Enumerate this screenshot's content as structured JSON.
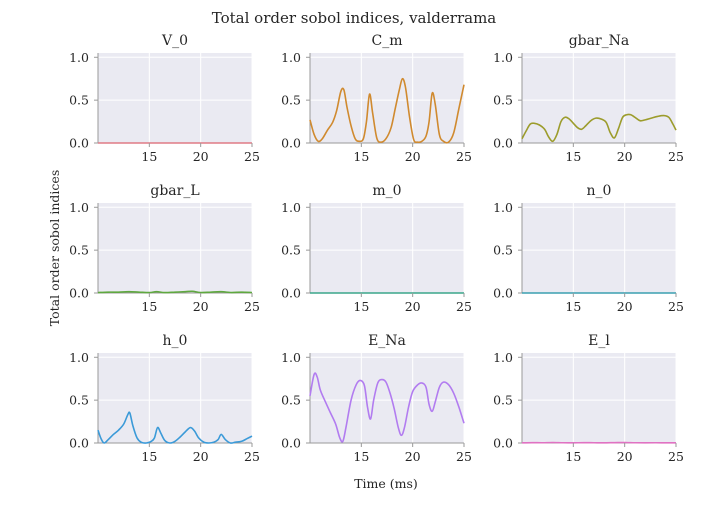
{
  "figure": {
    "title": "Total order sobol indices, valderrama",
    "xlabel": "Time (ms)",
    "ylabel": "Total order sobol indices"
  },
  "chart_data": {
    "type": "line",
    "title": "Total order sobol indices, valderrama",
    "xlabel": "Time (ms)",
    "ylabel": "Total order sobol indices",
    "xlim": [
      10,
      25
    ],
    "ylim": [
      0,
      1.05
    ],
    "xticks": [
      15,
      20,
      25
    ],
    "yticks": [
      "0.0",
      "0.5",
      "1.0"
    ],
    "grid": true,
    "background": "#eaeaf2",
    "panels": [
      {
        "title": "V_0",
        "color": "#e07b85",
        "x": [
          10,
          12,
          14,
          16,
          18,
          20,
          22,
          24,
          25
        ],
        "y": [
          0.0,
          0.0,
          0.0,
          0.0,
          0.0,
          0.0,
          0.0,
          0.0,
          0.0
        ]
      },
      {
        "title": "C_m",
        "color": "#d08a2f",
        "x": [
          10,
          10.4,
          10.8,
          11.2,
          11.7,
          12.2,
          12.6,
          13.0,
          13.3,
          13.6,
          14.0,
          14.4,
          14.8,
          15.2,
          15.5,
          15.8,
          16.1,
          16.5,
          16.9,
          17.4,
          17.9,
          18.3,
          18.7,
          19.0,
          19.3,
          19.7,
          20.1,
          20.5,
          20.9,
          21.3,
          21.6,
          21.9,
          22.2,
          22.6,
          23.0,
          23.5,
          24.0,
          24.5,
          25.0
        ],
        "y": [
          0.27,
          0.1,
          0.02,
          0.05,
          0.15,
          0.24,
          0.38,
          0.6,
          0.62,
          0.42,
          0.2,
          0.05,
          0.02,
          0.05,
          0.25,
          0.57,
          0.35,
          0.06,
          0.01,
          0.05,
          0.18,
          0.4,
          0.62,
          0.75,
          0.65,
          0.3,
          0.04,
          0.01,
          0.02,
          0.08,
          0.25,
          0.58,
          0.45,
          0.1,
          0.02,
          0.01,
          0.12,
          0.4,
          0.68
        ]
      },
      {
        "title": "gbar_Na",
        "color": "#9c9c2c",
        "x": [
          10,
          10.4,
          10.8,
          11.2,
          11.7,
          12.2,
          12.6,
          13.0,
          13.4,
          13.8,
          14.2,
          14.6,
          15.0,
          15.4,
          15.8,
          16.2,
          16.7,
          17.2,
          17.7,
          18.2,
          18.6,
          19.0,
          19.4,
          19.8,
          20.2,
          20.6,
          21.0,
          21.5,
          22.0,
          22.6,
          23.2,
          23.8,
          24.3,
          24.7,
          25.0
        ],
        "y": [
          0.05,
          0.14,
          0.22,
          0.23,
          0.21,
          0.16,
          0.07,
          0.02,
          0.1,
          0.25,
          0.3,
          0.28,
          0.23,
          0.18,
          0.16,
          0.2,
          0.26,
          0.29,
          0.28,
          0.24,
          0.12,
          0.06,
          0.17,
          0.3,
          0.33,
          0.33,
          0.3,
          0.26,
          0.27,
          0.29,
          0.31,
          0.32,
          0.3,
          0.22,
          0.15
        ]
      },
      {
        "title": "gbar_L",
        "color": "#5fa83f",
        "x": [
          10,
          11,
          12,
          13,
          14,
          15,
          15.7,
          16.5,
          17.5,
          18.5,
          19.2,
          20,
          21,
          22,
          23,
          24,
          25
        ],
        "y": [
          0.005,
          0.01,
          0.01,
          0.015,
          0.01,
          0.005,
          0.015,
          0.005,
          0.01,
          0.015,
          0.02,
          0.005,
          0.01,
          0.015,
          0.005,
          0.01,
          0.005
        ]
      },
      {
        "title": "m_0",
        "color": "#3aa68a",
        "x": [
          10,
          12,
          14,
          16,
          18,
          20,
          22,
          24,
          25
        ],
        "y": [
          0.0,
          0.0,
          0.0,
          0.0,
          0.0,
          0.0,
          0.0,
          0.0,
          0.0
        ]
      },
      {
        "title": "n_0",
        "color": "#3a9fb0",
        "x": [
          10,
          12,
          14,
          16,
          18,
          20,
          22,
          24,
          25
        ],
        "y": [
          0.0,
          0.0,
          0.0,
          0.0,
          0.0,
          0.0,
          0.0,
          0.0,
          0.0
        ]
      },
      {
        "title": "h_0",
        "color": "#3b9ad8",
        "x": [
          10,
          10.3,
          10.6,
          11.0,
          11.5,
          12.0,
          12.5,
          12.9,
          13.1,
          13.4,
          13.8,
          14.2,
          14.7,
          15.2,
          15.5,
          15.8,
          16.1,
          16.5,
          17.0,
          17.5,
          18.0,
          18.5,
          19.0,
          19.4,
          19.8,
          20.3,
          20.8,
          21.3,
          21.7,
          22.0,
          22.4,
          22.9,
          23.4,
          24.0,
          24.5,
          25.0
        ],
        "y": [
          0.15,
          0.05,
          0.0,
          0.04,
          0.1,
          0.15,
          0.22,
          0.33,
          0.35,
          0.2,
          0.06,
          0.01,
          0.0,
          0.02,
          0.06,
          0.18,
          0.12,
          0.03,
          0.0,
          0.02,
          0.07,
          0.13,
          0.18,
          0.14,
          0.06,
          0.01,
          0.0,
          0.01,
          0.04,
          0.1,
          0.04,
          0.0,
          0.01,
          0.02,
          0.05,
          0.08
        ]
      },
      {
        "title": "E_Na",
        "color": "#b27cf0",
        "x": [
          10,
          10.4,
          10.7,
          11.0,
          11.5,
          12.0,
          12.5,
          12.9,
          13.2,
          13.5,
          14.0,
          14.5,
          14.9,
          15.3,
          15.6,
          15.9,
          16.2,
          16.6,
          17.0,
          17.4,
          17.8,
          18.2,
          18.6,
          18.9,
          19.2,
          19.6,
          20.0,
          20.5,
          20.9,
          21.3,
          21.6,
          21.9,
          22.2,
          22.6,
          23.0,
          23.5,
          24.0,
          24.5,
          25.0
        ],
        "y": [
          0.55,
          0.8,
          0.77,
          0.62,
          0.48,
          0.35,
          0.22,
          0.06,
          0.02,
          0.18,
          0.5,
          0.68,
          0.73,
          0.67,
          0.42,
          0.28,
          0.5,
          0.7,
          0.74,
          0.71,
          0.58,
          0.4,
          0.18,
          0.09,
          0.18,
          0.42,
          0.6,
          0.68,
          0.7,
          0.65,
          0.45,
          0.37,
          0.48,
          0.65,
          0.71,
          0.68,
          0.58,
          0.42,
          0.23
        ]
      },
      {
        "title": "E_l",
        "color": "#e072c2",
        "x": [
          10,
          11,
          12,
          13,
          14,
          15,
          16,
          17,
          18,
          19,
          20,
          21,
          22,
          23,
          24,
          25
        ],
        "y": [
          0.002,
          0.004,
          0.003,
          0.006,
          0.003,
          0.002,
          0.004,
          0.003,
          0.002,
          0.004,
          0.006,
          0.003,
          0.002,
          0.003,
          0.002,
          0.002
        ]
      }
    ]
  }
}
